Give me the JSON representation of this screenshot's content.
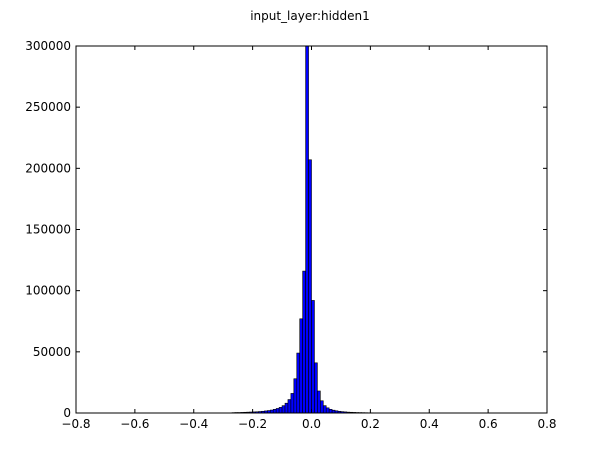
{
  "chart_data": {
    "type": "bar",
    "title": "input_layer:hidden1",
    "xlabel": "",
    "ylabel": "",
    "xlim": [
      -0.8,
      0.8
    ],
    "ylim": [
      0,
      300000
    ],
    "xticks": [
      -0.8,
      -0.6,
      -0.4,
      -0.2,
      0.0,
      0.2,
      0.4,
      0.6,
      0.8
    ],
    "xtick_labels": [
      "−0.8",
      "−0.6",
      "−0.4",
      "−0.2",
      "0.0",
      "0.2",
      "0.4",
      "0.6",
      "0.8"
    ],
    "yticks": [
      0,
      50000,
      100000,
      150000,
      200000,
      250000,
      300000
    ],
    "ytick_labels": [
      "0",
      "50000",
      "100000",
      "150000",
      "200000",
      "250000",
      "300000"
    ],
    "grid": false,
    "bar_color": "#0000ff",
    "edge_color": "#000000",
    "bin_width": 0.01,
    "bins": [
      {
        "x": -0.265,
        "count": 300
      },
      {
        "x": -0.255,
        "count": 400
      },
      {
        "x": -0.245,
        "count": 400
      },
      {
        "x": -0.235,
        "count": 500
      },
      {
        "x": -0.225,
        "count": 600
      },
      {
        "x": -0.215,
        "count": 700
      },
      {
        "x": -0.205,
        "count": 800
      },
      {
        "x": -0.195,
        "count": 900
      },
      {
        "x": -0.185,
        "count": 1000
      },
      {
        "x": -0.175,
        "count": 1200
      },
      {
        "x": -0.165,
        "count": 1400
      },
      {
        "x": -0.155,
        "count": 1700
      },
      {
        "x": -0.145,
        "count": 2000
      },
      {
        "x": -0.135,
        "count": 2400
      },
      {
        "x": -0.125,
        "count": 3000
      },
      {
        "x": -0.115,
        "count": 3700
      },
      {
        "x": -0.105,
        "count": 4600
      },
      {
        "x": -0.095,
        "count": 6000
      },
      {
        "x": -0.085,
        "count": 8000
      },
      {
        "x": -0.075,
        "count": 11000
      },
      {
        "x": -0.065,
        "count": 16000
      },
      {
        "x": -0.055,
        "count": 28000
      },
      {
        "x": -0.045,
        "count": 49000
      },
      {
        "x": -0.035,
        "count": 77000
      },
      {
        "x": -0.025,
        "count": 116000
      },
      {
        "x": -0.015,
        "count": 300000
      },
      {
        "x": -0.005,
        "count": 207000
      },
      {
        "x": 0.005,
        "count": 92000
      },
      {
        "x": 0.015,
        "count": 41000
      },
      {
        "x": 0.025,
        "count": 18000
      },
      {
        "x": 0.035,
        "count": 10000
      },
      {
        "x": 0.045,
        "count": 6000
      },
      {
        "x": 0.055,
        "count": 4200
      },
      {
        "x": 0.065,
        "count": 3000
      },
      {
        "x": 0.075,
        "count": 2300
      },
      {
        "x": 0.085,
        "count": 1800
      },
      {
        "x": 0.095,
        "count": 1400
      },
      {
        "x": 0.105,
        "count": 1100
      },
      {
        "x": 0.115,
        "count": 900
      },
      {
        "x": 0.125,
        "count": 700
      },
      {
        "x": 0.135,
        "count": 600
      },
      {
        "x": 0.145,
        "count": 500
      },
      {
        "x": 0.155,
        "count": 400
      },
      {
        "x": 0.165,
        "count": 350
      },
      {
        "x": 0.175,
        "count": 300
      },
      {
        "x": 0.185,
        "count": 250
      },
      {
        "x": 0.195,
        "count": 200
      },
      {
        "x": 0.205,
        "count": 180
      },
      {
        "x": 0.215,
        "count": 150
      }
    ]
  }
}
